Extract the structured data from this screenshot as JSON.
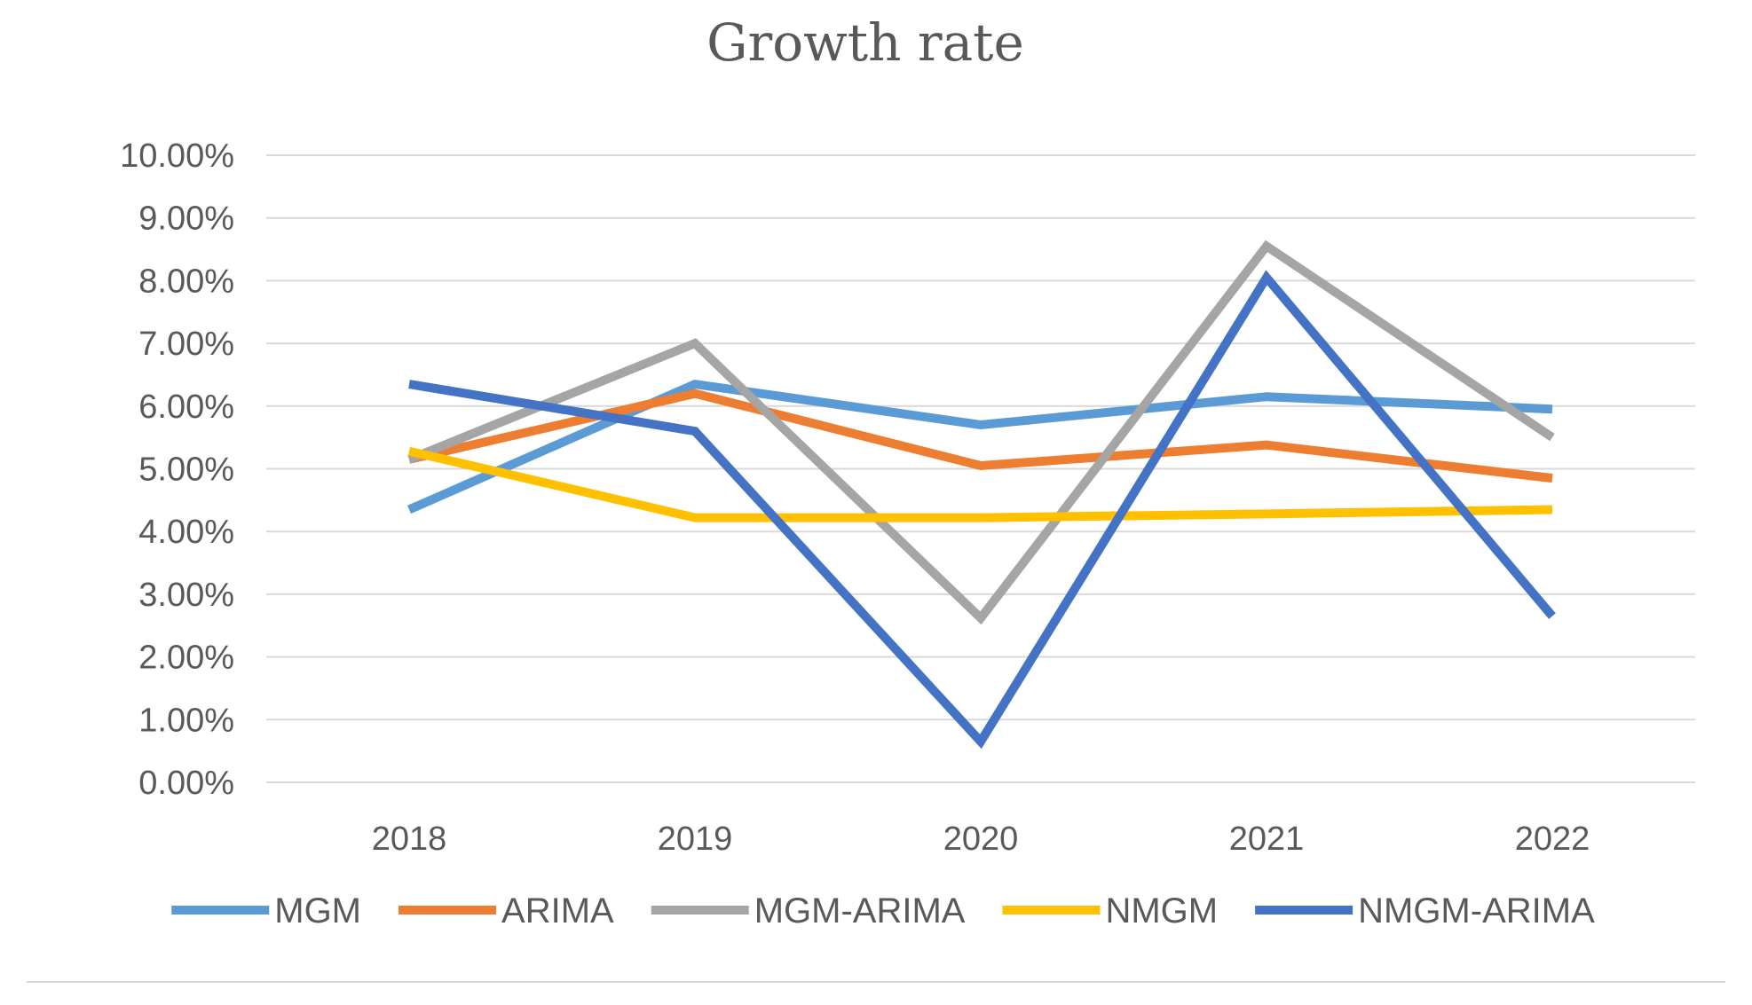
{
  "chart_data": {
    "type": "line",
    "title": "Growth rate",
    "xlabel": "",
    "ylabel": "",
    "categories": [
      "2018",
      "2019",
      "2020",
      "2021",
      "2022"
    ],
    "ylim": [
      0,
      10
    ],
    "yticks": [
      0,
      1,
      2,
      3,
      4,
      5,
      6,
      7,
      8,
      9,
      10
    ],
    "ytick_labels": [
      "0.00%",
      "1.00%",
      "2.00%",
      "3.00%",
      "4.00%",
      "5.00%",
      "6.00%",
      "7.00%",
      "8.00%",
      "9.00%",
      "10.00%"
    ],
    "grid": true,
    "legend_position": "bottom",
    "series": [
      {
        "name": "MGM",
        "color": "#5b9bd5",
        "values": [
          4.35,
          6.35,
          5.7,
          6.15,
          5.95
        ]
      },
      {
        "name": "ARIMA",
        "color": "#ed7d31",
        "values": [
          5.15,
          6.2,
          5.05,
          5.38,
          4.85
        ]
      },
      {
        "name": "MGM-ARIMA",
        "color": "#a5a5a5",
        "values": [
          5.15,
          7.0,
          2.62,
          8.55,
          5.5
        ]
      },
      {
        "name": "NMGM",
        "color": "#ffc000",
        "values": [
          5.28,
          4.22,
          4.22,
          4.28,
          4.35
        ]
      },
      {
        "name": "NMGM-ARIMA",
        "color": "#4472c4",
        "values": [
          6.35,
          5.6,
          0.65,
          8.05,
          2.65
        ]
      }
    ]
  }
}
